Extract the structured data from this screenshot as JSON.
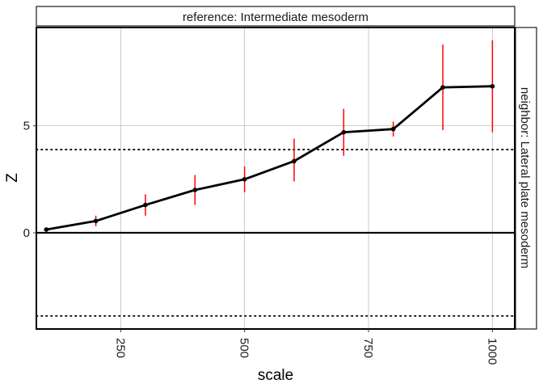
{
  "chart_data": {
    "type": "line",
    "facet_top_label": "reference: Intermediate mesoderm",
    "facet_right_label": "neighbor: Lateral plate mesoderm",
    "xlabel": "scale",
    "ylabel": "Z",
    "xlim": [
      80,
      1045
    ],
    "ylim": [
      -4.5,
      9.6
    ],
    "x_ticks": [
      250,
      500,
      750,
      1000
    ],
    "y_ticks": [
      0,
      5
    ],
    "x_tick_labels": [
      "250",
      "500",
      "750",
      "1000"
    ],
    "y_tick_labels": [
      "0",
      "5"
    ],
    "grid": true,
    "reference_lines": {
      "solid_y": 0,
      "dotted_y": [
        3.89,
        -3.89
      ]
    },
    "series": [
      {
        "x": [
          100,
          200,
          300,
          400,
          500,
          600,
          700,
          800,
          900,
          1000
        ],
        "values": [
          0.15,
          0.55,
          1.3,
          2.0,
          2.5,
          3.35,
          4.7,
          4.85,
          6.8,
          6.85
        ],
        "error_low": [
          0.1,
          0.3,
          0.8,
          1.3,
          1.9,
          2.4,
          3.6,
          4.5,
          4.8,
          4.7
        ],
        "error_high": [
          0.2,
          0.8,
          1.8,
          2.7,
          3.1,
          4.4,
          5.8,
          5.2,
          8.8,
          9.0
        ]
      }
    ],
    "colors": {
      "line": "#000000",
      "points": "#000000",
      "error_bars": "#ff0000",
      "grid": "#b3b3b3"
    }
  }
}
